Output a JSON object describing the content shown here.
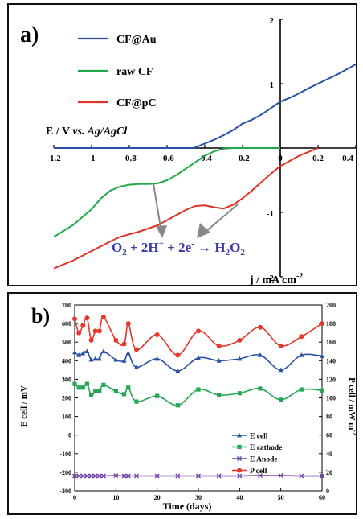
{
  "chart_data": [
    {
      "type": "line",
      "panel_label": "a)",
      "xlabel": "E / V vs. Ag/AgCl",
      "xlabel_parts": {
        "prefix": "E / V ",
        "vs": "vs.",
        "ref": " Ag/AgCl"
      },
      "ylabel": "j / mA cm-2",
      "ylabel_parts": {
        "base": "j / mA cm",
        "sup": "-2"
      },
      "xlim": [
        -1.2,
        0.4
      ],
      "ylim": [
        -2,
        2
      ],
      "x_ticks": [
        "-1.2",
        "-1",
        "-0.8",
        "-0.6",
        "-0.4",
        "-0.2",
        "0",
        "0.2",
        "0.4"
      ],
      "x_tick_values": [
        -1.2,
        -1.0,
        -0.8,
        -0.6,
        -0.4,
        -0.2,
        0,
        0.2,
        0.4
      ],
      "y_ticks": [
        "2",
        "1",
        "0",
        "-1",
        "-2"
      ],
      "y_tick_values": [
        2,
        1,
        0,
        -1,
        -2
      ],
      "legend_position": "top-left",
      "annotation": "O2 + 2H+ + 2e- → H2O2",
      "annotation_parts": {
        "o": "O",
        "two": "2",
        "plus": " + 2H",
        "hp": "+",
        "plus2": " + 2e",
        "em": "-",
        "arrow": " → H",
        "sub2": "2",
        "o2": "O",
        "sub3": "2"
      },
      "series": [
        {
          "name": "CF@Au",
          "color": "#2b4fa8",
          "x": [
            -1.2,
            -0.46,
            -0.4,
            -0.35,
            -0.3,
            -0.25,
            -0.2,
            -0.15,
            -0.1,
            -0.05,
            0,
            0.05,
            0.1,
            0.15,
            0.2,
            0.25,
            0.3,
            0.35,
            0.4
          ],
          "y": [
            0,
            0,
            0.07,
            0.13,
            0.2,
            0.28,
            0.38,
            0.44,
            0.52,
            0.62,
            0.72,
            0.78,
            0.85,
            0.93,
            1.0,
            1.07,
            1.14,
            1.22,
            1.3
          ]
        },
        {
          "name": "raw CF",
          "color": "#22a84a",
          "x": [
            -1.2,
            -1.1,
            -1.0,
            -0.95,
            -0.9,
            -0.85,
            -0.8,
            -0.75,
            -0.7,
            -0.65,
            -0.6,
            -0.55,
            -0.5,
            -0.45,
            -0.4,
            -0.35,
            -0.3,
            -0.25,
            -0.2,
            -0.1,
            0.0
          ],
          "y": [
            -1.38,
            -1.2,
            -0.95,
            -0.78,
            -0.66,
            -0.6,
            -0.57,
            -0.56,
            -0.56,
            -0.55,
            -0.5,
            -0.42,
            -0.32,
            -0.22,
            -0.12,
            -0.05,
            -0.01,
            0,
            0,
            0,
            0
          ]
        },
        {
          "name": "CF@pC",
          "color": "#e03325",
          "x": [
            -1.2,
            -1.1,
            -1.0,
            -0.9,
            -0.85,
            -0.8,
            -0.75,
            -0.7,
            -0.65,
            -0.6,
            -0.55,
            -0.5,
            -0.45,
            -0.4,
            -0.35,
            -0.3,
            -0.25,
            -0.2,
            -0.15,
            -0.1,
            -0.05,
            0.0,
            0.05,
            0.1,
            0.15,
            0.2
          ],
          "y": [
            -1.87,
            -1.75,
            -1.6,
            -1.45,
            -1.38,
            -1.34,
            -1.3,
            -1.25,
            -1.2,
            -1.12,
            -1.04,
            -0.96,
            -0.9,
            -0.89,
            -0.92,
            -0.94,
            -0.88,
            -0.78,
            -0.66,
            -0.53,
            -0.4,
            -0.28,
            -0.2,
            -0.12,
            -0.06,
            0
          ]
        }
      ]
    },
    {
      "type": "line",
      "panel_label": "b)",
      "xlabel": "Time (days)",
      "ylabel": "E cell / mV",
      "y2label": "P cell / mW m-2",
      "y2label_parts": {
        "base": "P cell / mW m",
        "sup": "-2"
      },
      "xlim": [
        0,
        60
      ],
      "ylim": [
        -300,
        700
      ],
      "y2lim": [
        0,
        200
      ],
      "x_ticks": [
        "0",
        "10",
        "20",
        "30",
        "40",
        "50",
        "60"
      ],
      "x_tick_values": [
        0,
        10,
        20,
        30,
        40,
        50,
        60
      ],
      "y_ticks": [
        "700",
        "600",
        "500",
        "400",
        "300",
        "200",
        "100",
        "0",
        "-100",
        "-200",
        "-300"
      ],
      "y_tick_values": [
        700,
        600,
        500,
        400,
        300,
        200,
        100,
        0,
        -100,
        -200,
        -300
      ],
      "y2_ticks": [
        "200",
        "180",
        "160",
        "140",
        "120",
        "100",
        "80",
        "60",
        "40",
        "20",
        "0"
      ],
      "y2_tick_values": [
        200,
        180,
        160,
        140,
        120,
        100,
        80,
        60,
        40,
        20,
        0
      ],
      "legend_position": "bottom-right",
      "series": [
        {
          "name": "E cell",
          "color": "#2a50a8",
          "marker": "triangle",
          "axis": "left",
          "x": [
            0,
            1,
            2,
            3,
            4,
            5,
            6,
            7,
            10,
            12,
            13,
            15,
            20,
            25,
            30,
            35,
            40,
            45,
            50,
            55,
            60
          ],
          "y": [
            445,
            430,
            440,
            450,
            405,
            410,
            410,
            450,
            405,
            400,
            440,
            365,
            410,
            345,
            415,
            400,
            410,
            430,
            350,
            430,
            425
          ]
        },
        {
          "name": "E cathode",
          "color": "#24a652",
          "marker": "square",
          "axis": "left",
          "x": [
            0,
            1,
            2,
            3,
            4,
            5,
            6,
            7,
            10,
            12,
            13,
            15,
            20,
            25,
            30,
            35,
            40,
            45,
            50,
            55,
            60
          ],
          "y": [
            275,
            255,
            255,
            275,
            215,
            235,
            235,
            270,
            235,
            220,
            255,
            180,
            210,
            160,
            245,
            215,
            225,
            250,
            190,
            245,
            240
          ]
        },
        {
          "name": "E Anode",
          "color": "#6b3fa0",
          "marker": "x",
          "axis": "left",
          "x": [
            0,
            1,
            2,
            3,
            4,
            5,
            6,
            7,
            10,
            12,
            13,
            15,
            20,
            25,
            30,
            35,
            40,
            45,
            50,
            55,
            60
          ],
          "y": [
            -220,
            -220,
            -220,
            -220,
            -220,
            -220,
            -220,
            -220,
            -218,
            -220,
            -220,
            -220,
            -220,
            -220,
            -220,
            -220,
            -220,
            -218,
            -218,
            -220,
            -220
          ]
        },
        {
          "name": "P cell",
          "color": "#e8372a",
          "marker": "circle",
          "axis": "right",
          "x": [
            0,
            1,
            2,
            3,
            4,
            5,
            6,
            7,
            10,
            12,
            13,
            15,
            20,
            25,
            30,
            35,
            40,
            45,
            50,
            55,
            60
          ],
          "y": [
            185,
            170,
            178,
            186,
            162,
            172,
            172,
            187,
            162,
            158,
            180,
            152,
            168,
            146,
            172,
            156,
            162,
            176,
            156,
            166,
            180
          ]
        }
      ]
    }
  ]
}
